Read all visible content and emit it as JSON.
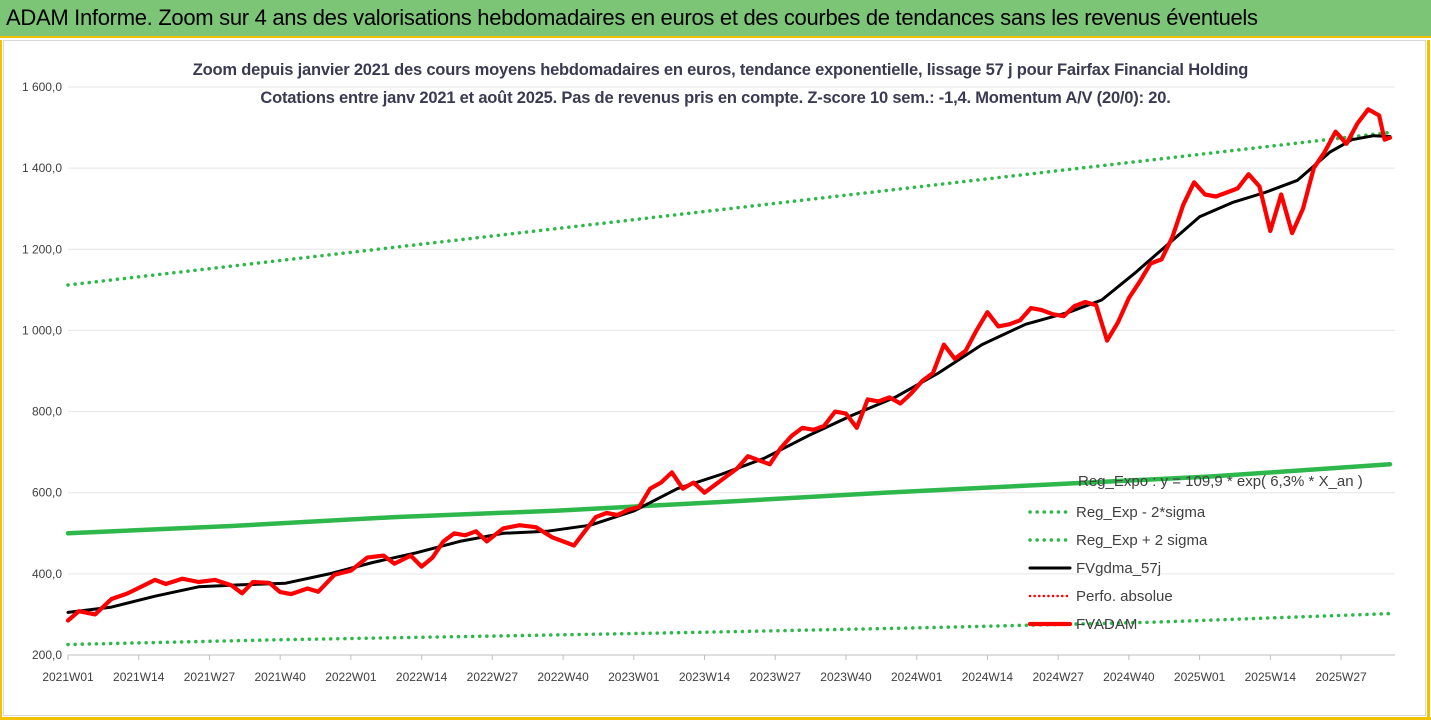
{
  "banner": {
    "title": "ADAM Informe. Zoom sur 4 ans des valorisations hebdomadaires en euros et des courbes de tendances sans les revenus éventuels"
  },
  "colors": {
    "banner_bg": "#7cc576",
    "frame_accent": "#f2c200",
    "fvadam": "#ff0000",
    "fvgdma": "#000000",
    "bands": "#2eb84c",
    "perfo": "#ff0000"
  },
  "chart_data": {
    "type": "line",
    "title": "Zoom depuis janvier 2021 des cours moyens hebdomadaires en euros, tendance exponentielle, lissage 57 j pour Fairfax Financial Holding",
    "subtitle": "Cotations entre janv 2021 et août 2025. Pas de revenus pris en compte. Z-score 10 sem.: -1,4. Momentum A/V (20/0): 20.",
    "equation_label": "Reg_Expo : y = 109,9 * exp( 6,3% * X_an )",
    "ylim": [
      200,
      1600
    ],
    "yticks": [
      "1 600,0",
      "1 400,0",
      "1 200,0",
      "1 000,0",
      "800,0",
      "600,0",
      "400,0",
      "200,0"
    ],
    "ytick_values": [
      1600,
      1400,
      1200,
      1000,
      800,
      600,
      400,
      200
    ],
    "xticks": [
      "2021W01",
      "2021W14",
      "2021W27",
      "2021W40",
      "2022W01",
      "2022W14",
      "2022W27",
      "2022W40",
      "2023W01",
      "2023W14",
      "2023W27",
      "2023W40",
      "2024W01",
      "2024W14",
      "2024W27",
      "2024W40",
      "2025W01",
      "2025W14",
      "2025W27"
    ],
    "xtick_index": [
      0,
      13,
      26,
      39,
      52,
      65,
      78,
      91,
      104,
      117,
      130,
      143,
      156,
      169,
      182,
      195,
      208,
      221,
      234
    ],
    "n_weeks": 244,
    "legend": [
      "Reg_Exp - 2*sigma",
      "Reg_Exp + 2 sigma",
      "FVgdma_57j",
      "Perfo. absolue",
      "FVADAM"
    ],
    "series": [
      {
        "name": "Reg_Exp + 2 sigma",
        "style": "dotted",
        "color": "#2eb84c",
        "points": [
          [
            0,
            1112
          ],
          [
            243,
            1488
          ]
        ]
      },
      {
        "name": "Reg_Expo",
        "style": "solid",
        "color": "#2eb84c",
        "points": [
          [
            0,
            500
          ],
          [
            30,
            518
          ],
          [
            60,
            540
          ],
          [
            90,
            556
          ],
          [
            120,
            577
          ],
          [
            150,
            600
          ],
          [
            180,
            620
          ],
          [
            210,
            640
          ],
          [
            243,
            670
          ]
        ]
      },
      {
        "name": "Reg_Exp - 2*sigma",
        "style": "dotted",
        "color": "#2eb84c",
        "points": [
          [
            0,
            226
          ],
          [
            40,
            238
          ],
          [
            80,
            247
          ],
          [
            120,
            257
          ],
          [
            160,
            268
          ],
          [
            200,
            281
          ],
          [
            243,
            302
          ]
        ]
      },
      {
        "name": "FVgdma_57j",
        "style": "solid",
        "color": "#000000",
        "points": [
          [
            0,
            305
          ],
          [
            8,
            318
          ],
          [
            16,
            345
          ],
          [
            24,
            368
          ],
          [
            32,
            373
          ],
          [
            40,
            377
          ],
          [
            48,
            400
          ],
          [
            56,
            428
          ],
          [
            64,
            452
          ],
          [
            72,
            480
          ],
          [
            80,
            500
          ],
          [
            88,
            505
          ],
          [
            96,
            520
          ],
          [
            104,
            555
          ],
          [
            112,
            610
          ],
          [
            120,
            645
          ],
          [
            128,
            685
          ],
          [
            136,
            740
          ],
          [
            144,
            790
          ],
          [
            152,
            835
          ],
          [
            160,
            895
          ],
          [
            168,
            965
          ],
          [
            176,
            1015
          ],
          [
            184,
            1045
          ],
          [
            190,
            1075
          ],
          [
            196,
            1140
          ],
          [
            202,
            1210
          ],
          [
            208,
            1280
          ],
          [
            214,
            1315
          ],
          [
            220,
            1340
          ],
          [
            226,
            1370
          ],
          [
            232,
            1440
          ],
          [
            236,
            1470
          ],
          [
            240,
            1480
          ],
          [
            243,
            1478
          ]
        ]
      },
      {
        "name": "FVADAM",
        "style": "solid",
        "color": "#ff0000",
        "points": [
          [
            0,
            285
          ],
          [
            2,
            308
          ],
          [
            5,
            300
          ],
          [
            8,
            338
          ],
          [
            11,
            352
          ],
          [
            14,
            372
          ],
          [
            16,
            385
          ],
          [
            18,
            375
          ],
          [
            21,
            388
          ],
          [
            24,
            380
          ],
          [
            27,
            385
          ],
          [
            30,
            372
          ],
          [
            32,
            352
          ],
          [
            34,
            380
          ],
          [
            37,
            378
          ],
          [
            39,
            355
          ],
          [
            41,
            350
          ],
          [
            44,
            364
          ],
          [
            46,
            356
          ],
          [
            49,
            398
          ],
          [
            52,
            408
          ],
          [
            55,
            440
          ],
          [
            58,
            445
          ],
          [
            60,
            425
          ],
          [
            63,
            445
          ],
          [
            65,
            418
          ],
          [
            67,
            440
          ],
          [
            69,
            480
          ],
          [
            71,
            500
          ],
          [
            73,
            495
          ],
          [
            75,
            505
          ],
          [
            77,
            480
          ],
          [
            80,
            512
          ],
          [
            83,
            520
          ],
          [
            86,
            515
          ],
          [
            89,
            490
          ],
          [
            91,
            480
          ],
          [
            93,
            470
          ],
          [
            95,
            505
          ],
          [
            97,
            540
          ],
          [
            99,
            550
          ],
          [
            101,
            545
          ],
          [
            103,
            558
          ],
          [
            105,
            565
          ],
          [
            107,
            610
          ],
          [
            109,
            625
          ],
          [
            111,
            650
          ],
          [
            113,
            610
          ],
          [
            115,
            625
          ],
          [
            117,
            600
          ],
          [
            119,
            620
          ],
          [
            121,
            640
          ],
          [
            123,
            660
          ],
          [
            125,
            690
          ],
          [
            127,
            680
          ],
          [
            129,
            670
          ],
          [
            131,
            710
          ],
          [
            133,
            740
          ],
          [
            135,
            760
          ],
          [
            137,
            755
          ],
          [
            139,
            765
          ],
          [
            141,
            800
          ],
          [
            143,
            795
          ],
          [
            145,
            760
          ],
          [
            147,
            830
          ],
          [
            149,
            825
          ],
          [
            151,
            835
          ],
          [
            153,
            820
          ],
          [
            155,
            845
          ],
          [
            157,
            875
          ],
          [
            159,
            895
          ],
          [
            161,
            965
          ],
          [
            163,
            930
          ],
          [
            165,
            950
          ],
          [
            167,
            1000
          ],
          [
            169,
            1045
          ],
          [
            171,
            1010
          ],
          [
            173,
            1015
          ],
          [
            175,
            1025
          ],
          [
            177,
            1055
          ],
          [
            179,
            1050
          ],
          [
            181,
            1040
          ],
          [
            183,
            1035
          ],
          [
            185,
            1060
          ],
          [
            187,
            1070
          ],
          [
            189,
            1062
          ],
          [
            191,
            975
          ],
          [
            193,
            1020
          ],
          [
            195,
            1080
          ],
          [
            197,
            1120
          ],
          [
            199,
            1165
          ],
          [
            201,
            1175
          ],
          [
            203,
            1230
          ],
          [
            205,
            1310
          ],
          [
            207,
            1365
          ],
          [
            209,
            1335
          ],
          [
            211,
            1330
          ],
          [
            213,
            1340
          ],
          [
            215,
            1350
          ],
          [
            217,
            1385
          ],
          [
            219,
            1355
          ],
          [
            221,
            1245
          ],
          [
            223,
            1335
          ],
          [
            225,
            1240
          ],
          [
            227,
            1300
          ],
          [
            229,
            1400
          ],
          [
            231,
            1440
          ],
          [
            233,
            1490
          ],
          [
            235,
            1460
          ],
          [
            237,
            1510
          ],
          [
            239,
            1545
          ],
          [
            241,
            1530
          ],
          [
            242,
            1470
          ],
          [
            243,
            1475
          ]
        ]
      }
    ]
  }
}
